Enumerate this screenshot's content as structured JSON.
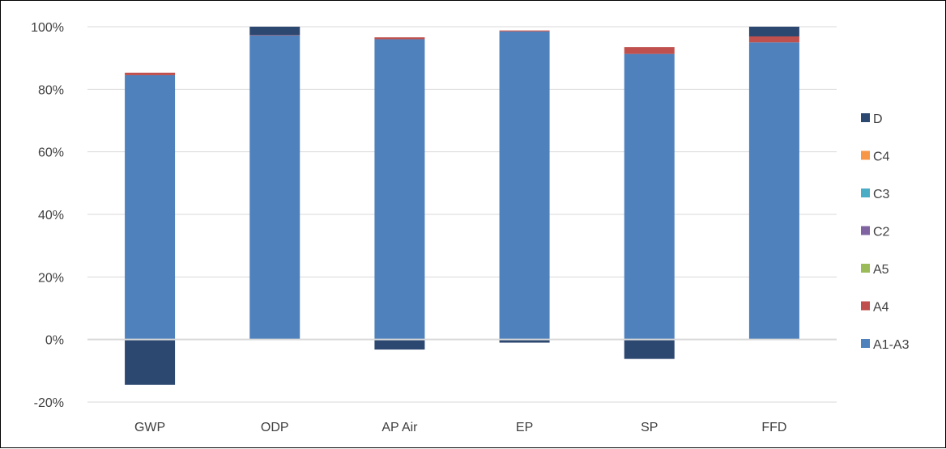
{
  "chart_data": {
    "type": "bar",
    "stacked": true,
    "title": "",
    "xlabel": "",
    "ylabel": "",
    "ylim": [
      -20,
      100
    ],
    "yticks": [
      "-20%",
      "0%",
      "20%",
      "40%",
      "60%",
      "80%",
      "100%"
    ],
    "ytick_values": [
      -20,
      0,
      20,
      40,
      60,
      80,
      100
    ],
    "grid": true,
    "legend_position": "right",
    "categories": [
      "GWP",
      "ODP",
      "AP Air",
      "EP",
      "SP",
      "FFD"
    ],
    "series": [
      {
        "name": "A1-A3",
        "color": "#4F81BD",
        "values": [
          84.5,
          97.3,
          96.0,
          98.5,
          91.3,
          95.0
        ]
      },
      {
        "name": "A4",
        "color": "#C0504D",
        "values": [
          0.8,
          0.1,
          0.6,
          0.3,
          2.2,
          1.9
        ]
      },
      {
        "name": "A5",
        "color": "#9BBB59",
        "values": [
          0,
          0,
          0,
          0,
          0,
          0
        ]
      },
      {
        "name": "C2",
        "color": "#8064A2",
        "values": [
          0,
          0,
          0,
          0,
          0,
          0
        ]
      },
      {
        "name": "C3",
        "color": "#4BACC6",
        "values": [
          0,
          0,
          0,
          0,
          0,
          0
        ]
      },
      {
        "name": "C4",
        "color": "#F79646",
        "values": [
          0,
          0,
          0,
          0,
          0,
          0
        ]
      },
      {
        "name": "D",
        "color": "#2C4770",
        "values": [
          -14.5,
          2.6,
          -3.2,
          -1.0,
          -6.2,
          3.1
        ]
      }
    ],
    "legend_order": [
      "D",
      "C4",
      "C3",
      "C2",
      "A5",
      "A4",
      "A1-A3"
    ]
  }
}
